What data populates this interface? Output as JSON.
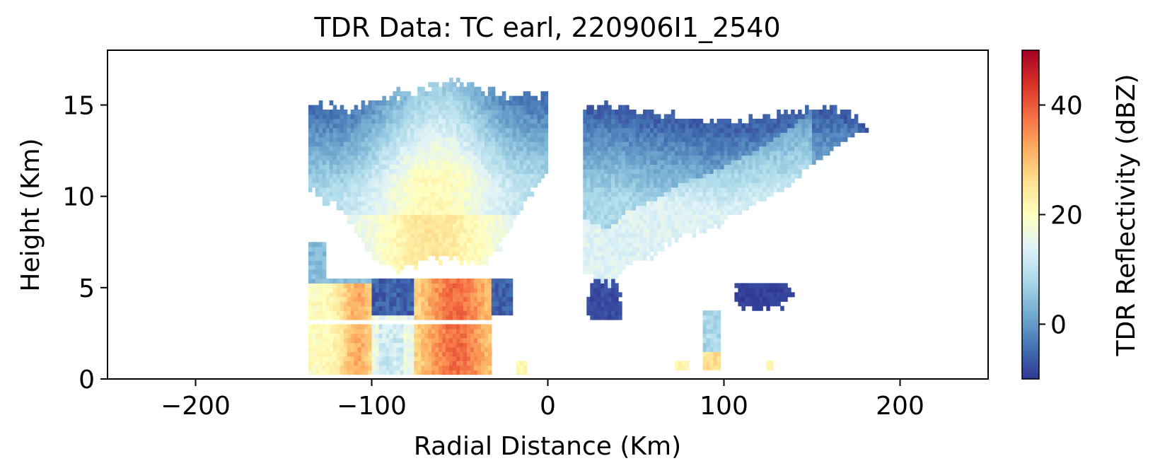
{
  "chart_data": {
    "type": "heatmap",
    "title": "TDR Data: TC earl, 220906I1_2540",
    "xlabel": "Radial Distance (Km)",
    "ylabel": "Height (Km)",
    "xlim": [
      -250,
      250
    ],
    "ylim": [
      0,
      18
    ],
    "xticks": [
      -200,
      -100,
      0,
      100,
      200
    ],
    "xtick_labels": [
      "−200",
      "−100",
      "0",
      "100",
      "200"
    ],
    "yticks": [
      0,
      5,
      10,
      15
    ],
    "ytick_labels": [
      "0",
      "5",
      "10",
      "15"
    ],
    "colorbar": {
      "label": "TDR Reflectivity (dBZ)",
      "range": [
        -10,
        50
      ],
      "ticks": [
        0,
        20,
        40
      ],
      "tick_labels": [
        "0",
        "20",
        "40"
      ],
      "colormap": "RdYlBu_r",
      "colors": [
        "#313695",
        "#4575b4",
        "#74add1",
        "#abd9e9",
        "#e0f3f8",
        "#ffffbf",
        "#fee090",
        "#fdae61",
        "#f46d43",
        "#d73027",
        "#a50026"
      ]
    },
    "grid": false,
    "description_regions": [
      {
        "x": [
          -135,
          -105
        ],
        "y": [
          0.3,
          5
        ],
        "dbz": 25
      },
      {
        "x": [
          -75,
          -35
        ],
        "y": [
          0.3,
          5
        ],
        "dbz": 38
      },
      {
        "x": [
          -100,
          -78
        ],
        "y": [
          3.5,
          5.5
        ],
        "dbz": -5
      },
      {
        "x": [
          -110,
          -30
        ],
        "y": [
          5,
          15
        ],
        "dbz": 15
      },
      {
        "x": [
          20,
          180
        ],
        "y": [
          6,
          15
        ],
        "dbz": 8
      },
      {
        "x": [
          25,
          40
        ],
        "y": [
          3,
          5
        ],
        "dbz": -8
      },
      {
        "x": [
          108,
          140
        ],
        "y": [
          3.5,
          5
        ],
        "dbz": -9
      }
    ]
  }
}
